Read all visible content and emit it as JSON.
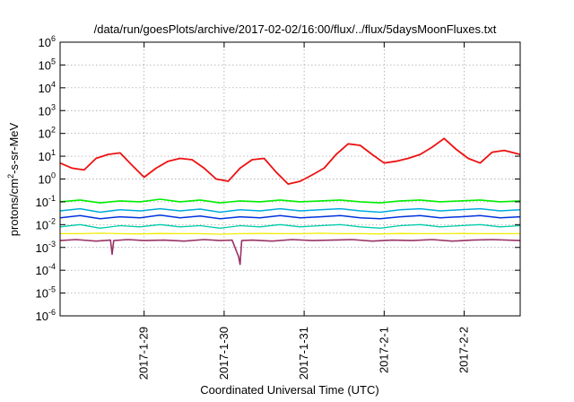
{
  "chart_data": {
    "type": "line",
    "title": "/data/run/goesPlots/archive/2017-02-02/16:00/flux/../flux/5daysMoonFluxes.txt",
    "xlabel": "Coordinated Universal Time (UTC)",
    "ylabel": "protons/cm²-s-sr-MeV",
    "ylabel_parts": {
      "pre": "protons/cm",
      "sup": "2",
      "post": "-s-sr-MeV"
    },
    "yscale": "log",
    "ylim_exp": [
      -6,
      6
    ],
    "ytick_labels": [
      {
        "exp": -6,
        "base": "10",
        "sup": "-6"
      },
      {
        "exp": -5,
        "base": "10",
        "sup": "-5"
      },
      {
        "exp": -4,
        "base": "10",
        "sup": "-4"
      },
      {
        "exp": -3,
        "base": "10",
        "sup": "-3"
      },
      {
        "exp": -2,
        "base": "10",
        "sup": "-2"
      },
      {
        "exp": -1,
        "base": "10",
        "sup": "-1"
      },
      {
        "exp": 0,
        "base": "10",
        "sup": "0"
      },
      {
        "exp": 1,
        "base": "10",
        "sup": "1"
      },
      {
        "exp": 2,
        "base": "10",
        "sup": "2"
      },
      {
        "exp": 3,
        "base": "10",
        "sup": "3"
      },
      {
        "exp": 4,
        "base": "10",
        "sup": "4"
      },
      {
        "exp": 5,
        "base": "10",
        "sup": "5"
      },
      {
        "exp": 6,
        "base": "10",
        "sup": "6"
      }
    ],
    "xlim_days": [
      -1.05,
      4.7
    ],
    "x_ticks": [
      {
        "day": 0,
        "label": "2017-1-29"
      },
      {
        "day": 1,
        "label": "2017-1-30"
      },
      {
        "day": 2,
        "label": "2017-1-31"
      },
      {
        "day": 3,
        "label": "2017-2-1"
      },
      {
        "day": 4,
        "label": "2017-2-2"
      }
    ],
    "grid": true,
    "series": [
      {
        "color": "#ee1111",
        "width": 1.8,
        "x": [
          -1.05,
          -0.9,
          -0.75,
          -0.6,
          -0.45,
          -0.3,
          -0.15,
          0.0,
          0.15,
          0.3,
          0.45,
          0.6,
          0.75,
          0.9,
          1.05,
          1.2,
          1.35,
          1.5,
          1.65,
          1.8,
          1.95,
          2.1,
          2.25,
          2.4,
          2.55,
          2.7,
          2.85,
          3.0,
          3.15,
          3.3,
          3.45,
          3.6,
          3.75,
          3.9,
          4.05,
          4.2,
          4.35,
          4.5,
          4.7
        ],
        "y": [
          5,
          3,
          2.5,
          8,
          12,
          14,
          4,
          1.2,
          3,
          6,
          8,
          7,
          3,
          1,
          0.8,
          3,
          7,
          8,
          2,
          0.6,
          0.8,
          1.5,
          3,
          12,
          35,
          30,
          12,
          5,
          6,
          8,
          12,
          25,
          60,
          20,
          8,
          5,
          15,
          18,
          12
        ]
      },
      {
        "color": "#00ee00",
        "width": 1.6,
        "x": [
          -1.05,
          -0.8,
          -0.55,
          -0.3,
          -0.05,
          0.2,
          0.45,
          0.7,
          0.95,
          1.2,
          1.45,
          1.7,
          1.95,
          2.2,
          2.45,
          2.7,
          2.95,
          3.2,
          3.45,
          3.7,
          3.95,
          4.2,
          4.45,
          4.7
        ],
        "y": [
          0.1,
          0.12,
          0.09,
          0.11,
          0.1,
          0.13,
          0.1,
          0.12,
          0.09,
          0.11,
          0.1,
          0.12,
          0.1,
          0.11,
          0.12,
          0.1,
          0.09,
          0.11,
          0.12,
          0.1,
          0.11,
          0.12,
          0.1,
          0.11
        ]
      },
      {
        "color": "#00aadd",
        "width": 1.5,
        "x": [
          -1.05,
          -0.8,
          -0.55,
          -0.3,
          -0.05,
          0.2,
          0.45,
          0.7,
          0.95,
          1.2,
          1.45,
          1.7,
          1.95,
          2.2,
          2.45,
          2.7,
          2.95,
          3.2,
          3.45,
          3.7,
          3.95,
          4.2,
          4.45,
          4.7
        ],
        "y": [
          0.04,
          0.05,
          0.035,
          0.045,
          0.04,
          0.05,
          0.04,
          0.048,
          0.035,
          0.045,
          0.04,
          0.05,
          0.04,
          0.045,
          0.05,
          0.04,
          0.035,
          0.045,
          0.05,
          0.04,
          0.045,
          0.05,
          0.04,
          0.045
        ]
      },
      {
        "color": "#0033dd",
        "width": 1.5,
        "x": [
          -1.05,
          -0.8,
          -0.55,
          -0.3,
          -0.05,
          0.2,
          0.45,
          0.7,
          0.95,
          1.2,
          1.45,
          1.7,
          1.95,
          2.2,
          2.45,
          2.7,
          2.95,
          3.2,
          3.45,
          3.7,
          3.95,
          4.2,
          4.45,
          4.7
        ],
        "y": [
          0.02,
          0.025,
          0.018,
          0.022,
          0.02,
          0.026,
          0.02,
          0.024,
          0.018,
          0.022,
          0.02,
          0.025,
          0.02,
          0.022,
          0.025,
          0.02,
          0.018,
          0.022,
          0.025,
          0.02,
          0.022,
          0.025,
          0.02,
          0.022
        ]
      },
      {
        "color": "#00ccaa",
        "width": 1.3,
        "x": [
          -1.05,
          -0.8,
          -0.55,
          -0.3,
          -0.05,
          0.2,
          0.45,
          0.7,
          0.95,
          1.2,
          1.45,
          1.7,
          1.95,
          2.2,
          2.45,
          2.7,
          2.95,
          3.2,
          3.45,
          3.7,
          3.95,
          4.2,
          4.45,
          4.7
        ],
        "y": [
          0.008,
          0.01,
          0.007,
          0.009,
          0.008,
          0.01,
          0.008,
          0.009,
          0.007,
          0.009,
          0.008,
          0.01,
          0.008,
          0.009,
          0.01,
          0.008,
          0.007,
          0.009,
          0.01,
          0.008,
          0.009,
          0.01,
          0.008,
          0.009
        ]
      },
      {
        "color": "#eeee00",
        "width": 1.3,
        "x": [
          -1.05,
          -0.8,
          -0.55,
          -0.3,
          -0.05,
          0.2,
          0.45,
          0.7,
          0.95,
          1.2,
          1.45,
          1.7,
          1.95,
          2.2,
          2.45,
          2.7,
          2.95,
          3.2,
          3.45,
          3.7,
          3.95,
          4.2,
          4.45,
          4.7
        ],
        "y": [
          0.004,
          0.004,
          0.0042,
          0.004,
          0.0039,
          0.0041,
          0.004,
          0.004,
          0.0038,
          0.004,
          0.0041,
          0.004,
          0.004,
          0.0042,
          0.004,
          0.004,
          0.0039,
          0.0041,
          0.004,
          0.004,
          0.0041,
          0.004,
          0.004,
          0.004
        ]
      },
      {
        "color": "#993366",
        "width": 1.6,
        "x": [
          -1.05,
          -0.85,
          -0.6,
          -0.42,
          -0.4,
          -0.38,
          -0.2,
          0.0,
          0.25,
          0.5,
          0.75,
          0.95,
          1.1,
          1.18,
          1.2,
          1.22,
          1.35,
          1.6,
          1.85,
          2.1,
          2.35,
          2.6,
          2.85,
          3.1,
          3.35,
          3.6,
          3.85,
          4.1,
          4.35,
          4.7
        ],
        "y": [
          0.002,
          0.0022,
          0.0019,
          0.0021,
          0.0005,
          0.002,
          0.0022,
          0.002,
          0.0021,
          0.0019,
          0.0022,
          0.002,
          0.0021,
          0.0004,
          0.00018,
          0.002,
          0.0021,
          0.0019,
          0.0022,
          0.002,
          0.0021,
          0.0022,
          0.0019,
          0.0021,
          0.002,
          0.0022,
          0.0019,
          0.0021,
          0.0022,
          0.002
        ]
      }
    ]
  }
}
